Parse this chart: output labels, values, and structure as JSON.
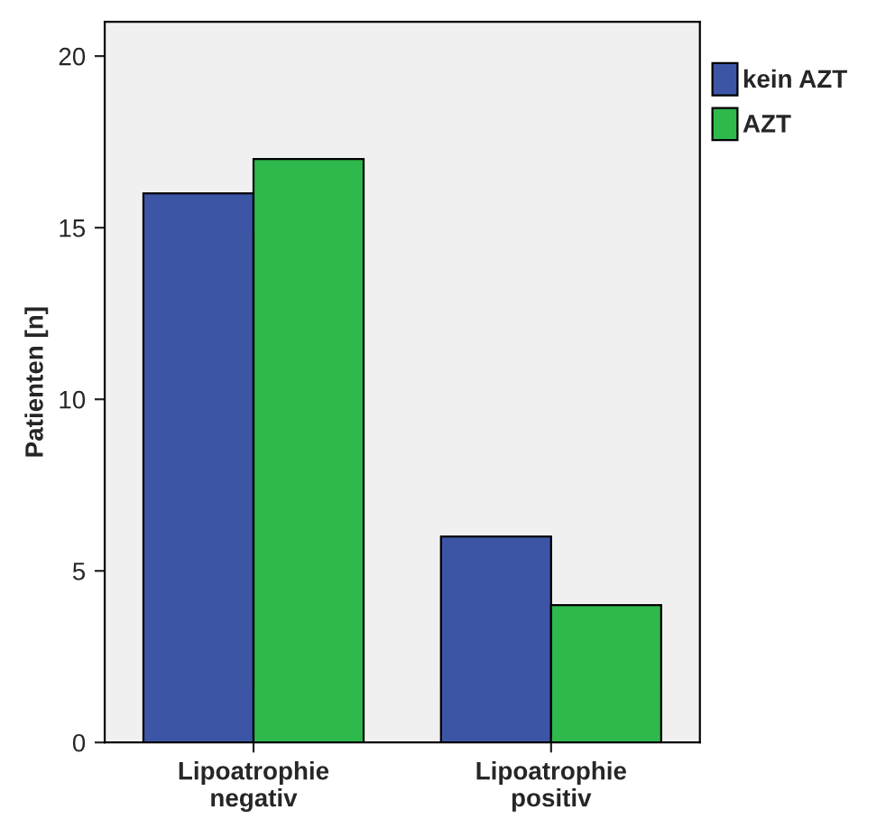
{
  "chart_data": {
    "type": "bar",
    "ylabel": "Patienten [n]",
    "categories": [
      "Lipoatrophie\nnegativ",
      "Lipoatrophie\npositiv"
    ],
    "series": [
      {
        "name": "kein AZT",
        "color": "#3c55a5",
        "values": [
          16,
          6
        ]
      },
      {
        "name": "AZT",
        "color": "#2fb84b",
        "values": [
          17,
          4
        ]
      }
    ],
    "ylim": [
      0,
      21
    ],
    "yticks": [
      0,
      5,
      10,
      15,
      20
    ],
    "grid": false,
    "legend": "top right"
  }
}
